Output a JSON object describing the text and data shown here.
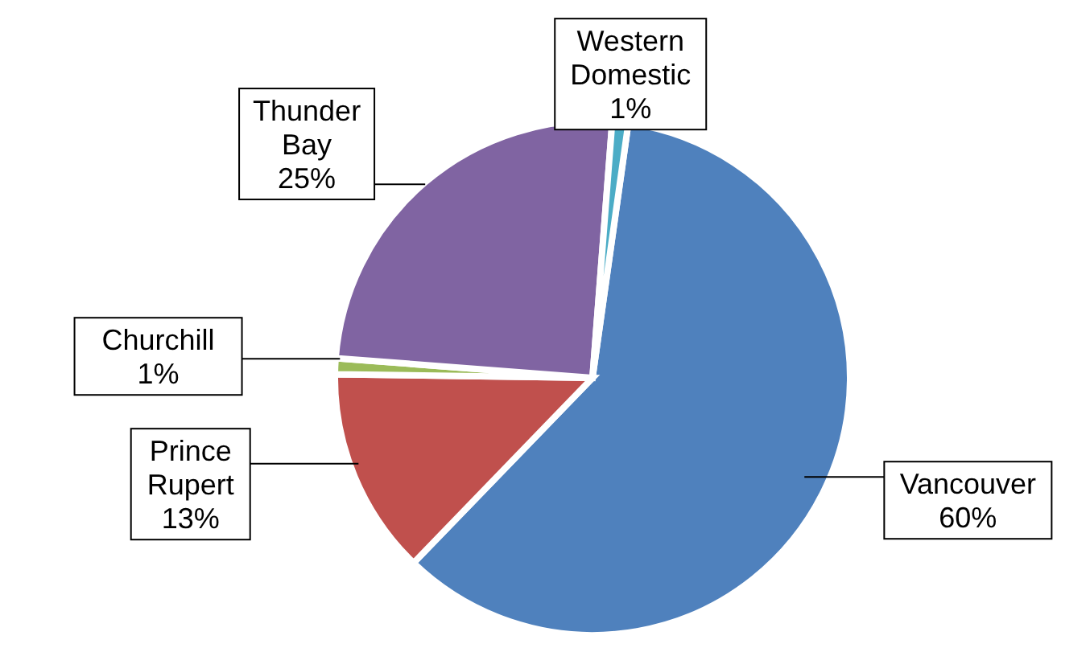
{
  "chart_data": {
    "type": "pie",
    "categories": [
      "Vancouver",
      "Prince Rupert",
      "Churchill",
      "Thunder Bay",
      "Western Domestic"
    ],
    "values": [
      60,
      13,
      1,
      25,
      1
    ],
    "value_labels": [
      "60%",
      "13%",
      "1%",
      "25%",
      "1%"
    ],
    "colors": [
      "#4f81bd",
      "#c0504d",
      "#9bbb59",
      "#8064a2",
      "#4bacc6"
    ]
  }
}
